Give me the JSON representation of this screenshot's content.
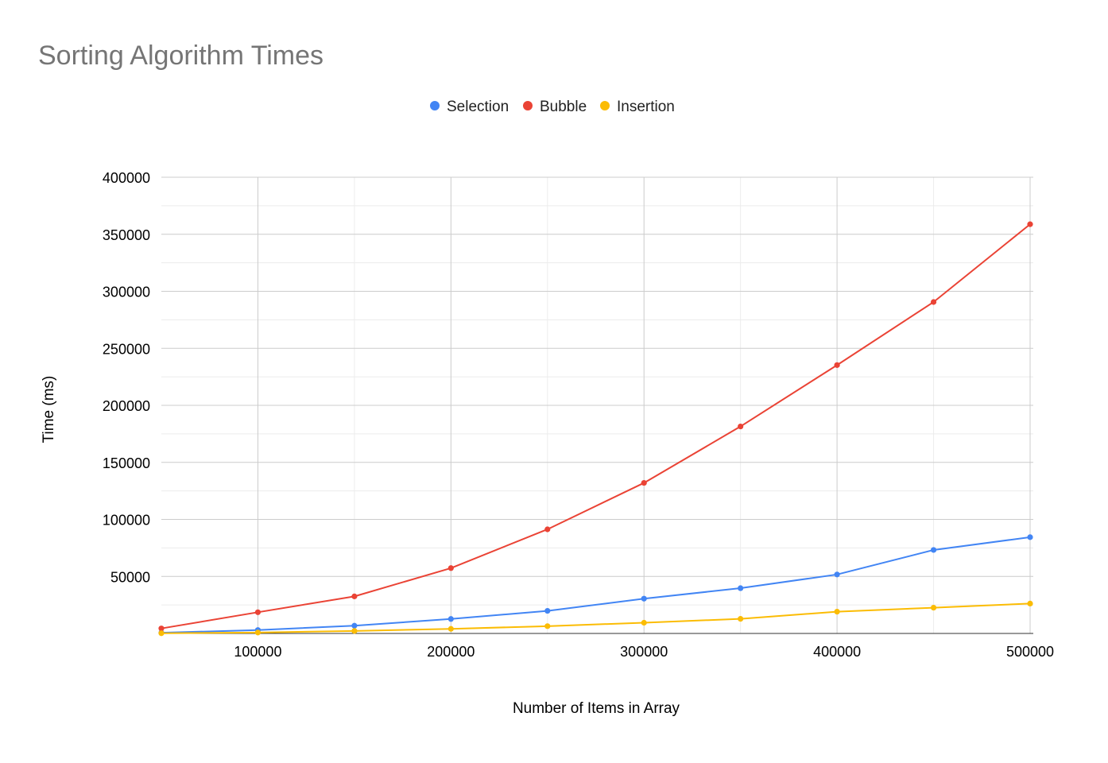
{
  "chart_data": {
    "type": "line",
    "title": "Sorting Algorithm Times",
    "xlabel": "Number of Items in Array",
    "ylabel": "Time (ms)",
    "x": [
      50000,
      100000,
      150000,
      200000,
      250000,
      300000,
      350000,
      400000,
      450000,
      500000
    ],
    "xlim": [
      50000,
      500000
    ],
    "ylim": [
      0,
      400000
    ],
    "x_ticks": [
      100000,
      200000,
      300000,
      400000,
      500000
    ],
    "y_ticks": [
      50000,
      100000,
      150000,
      200000,
      250000,
      300000,
      350000,
      400000
    ],
    "x_tick_labels": [
      "100000",
      "200000",
      "300000",
      "400000",
      "500000"
    ],
    "y_tick_labels": [
      "50000",
      "100000",
      "150000",
      "200000",
      "250000",
      "300000",
      "350000",
      "400000"
    ],
    "grid": true,
    "legend_position": "top",
    "series": [
      {
        "name": "Selection",
        "color": "#4285F4",
        "values": [
          600,
          3000,
          6800,
          12700,
          19800,
          30500,
          39700,
          51700,
          73200,
          84400
        ]
      },
      {
        "name": "Bubble",
        "color": "#EA4335",
        "values": [
          4400,
          18600,
          32500,
          57300,
          91300,
          132000,
          181500,
          235300,
          290600,
          358800
        ]
      },
      {
        "name": "Insertion",
        "color": "#FBBC04",
        "values": [
          200,
          800,
          2200,
          4000,
          6400,
          9400,
          12800,
          19100,
          22600,
          26200
        ]
      }
    ]
  }
}
